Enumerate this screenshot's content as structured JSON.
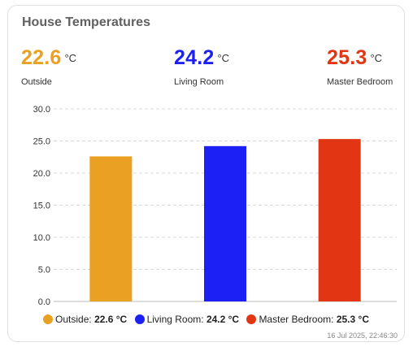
{
  "card": {
    "title": "House Temperatures",
    "timestamp": "16 Jul 2025, 22:46:30"
  },
  "readings": [
    {
      "value": "22.6",
      "unit": "°C",
      "name": "Outside",
      "color": "#e9a023"
    },
    {
      "value": "24.2",
      "unit": "°C",
      "name": "Living Room",
      "color": "#1c20f4"
    },
    {
      "value": "25.3",
      "unit": "°C",
      "name": "Master Bedroom",
      "color": "#e13514"
    }
  ],
  "legend": [
    {
      "label": "Outside:",
      "value": "22.6 °C",
      "color": "#e9a023"
    },
    {
      "label": "Living Room:",
      "value": "24.2 °C",
      "color": "#1c20f4"
    },
    {
      "label": "Master Bedroom:",
      "value": "25.3 °C",
      "color": "#e13514"
    }
  ],
  "chart_data": {
    "type": "bar",
    "categories": [
      "Outside",
      "Living Room",
      "Master Bedroom"
    ],
    "values": [
      22.6,
      24.2,
      25.3
    ],
    "colors": [
      "#e9a023",
      "#1c20f4",
      "#e13514"
    ],
    "ylim": [
      0,
      30
    ],
    "yticks": [
      "0.0",
      "5.0",
      "10.0",
      "15.0",
      "20.0",
      "25.0",
      "30.0"
    ],
    "grid": true,
    "legend_position": "bottom"
  }
}
